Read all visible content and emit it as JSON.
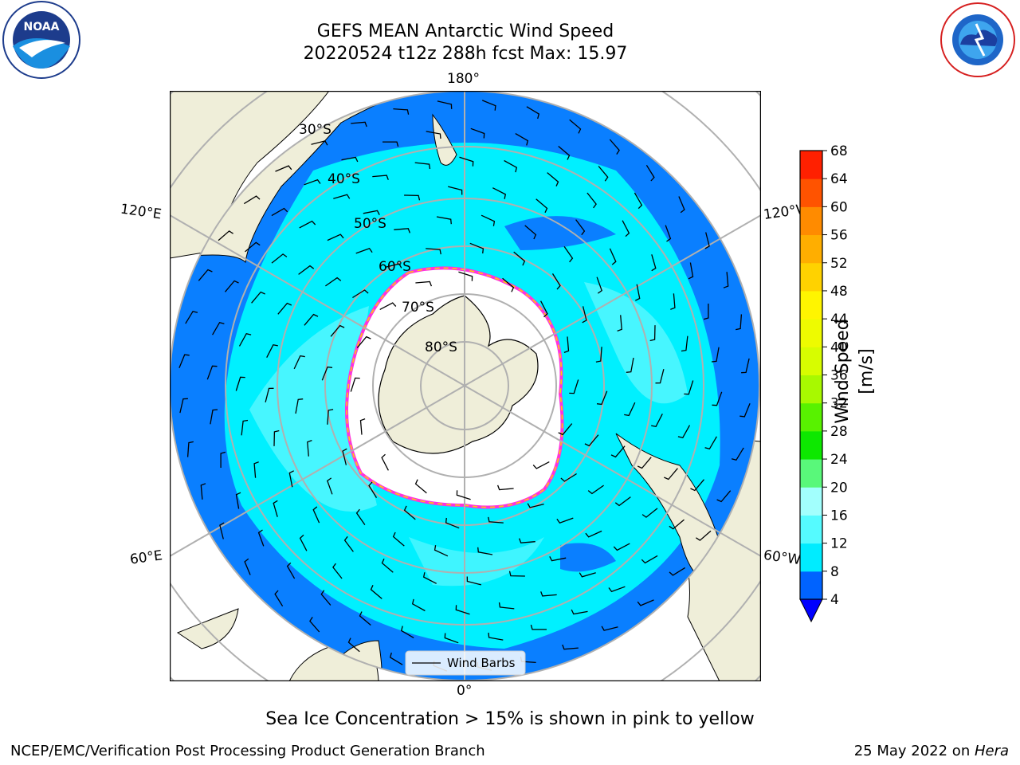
{
  "title": {
    "line1": "GEFS MEAN Antarctic Wind Speed",
    "line2": "20220524 t12z 288h fcst   Max: 15.97"
  },
  "map": {
    "lon_labels": {
      "top": "180°",
      "bottom": "0°",
      "left_upper": "120°E",
      "left_lower": "60°E",
      "right_upper": "120°W",
      "right_lower": "60°W"
    },
    "lat_labels": [
      "30°S",
      "40°S",
      "50°S",
      "60°S",
      "70°S",
      "80°S"
    ],
    "legend_label": "Wind Barbs",
    "colors": {
      "ocean_low": "#0a7fff",
      "ocean_mid": "#00f0ff",
      "ocean_high": "#4ff6ff",
      "land": "#efeed9",
      "ice": "#ffffff",
      "ice_edge": "#ff33dd"
    }
  },
  "colorbar": {
    "label": "Wind Speed [m/s]",
    "ticks": [
      "4",
      "8",
      "12",
      "16",
      "20",
      "24",
      "28",
      "32",
      "36",
      "40",
      "44",
      "48",
      "52",
      "56",
      "60",
      "64",
      "68"
    ],
    "colors": [
      "#0063ff",
      "#00ecff",
      "#55fbff",
      "#a2fffd",
      "#59f87a",
      "#0de800",
      "#58f200",
      "#a8f900",
      "#d7fd00",
      "#eefb00",
      "#fff500",
      "#ffd200",
      "#ffae00",
      "#ff8b00",
      "#ff5300",
      "#ff2000"
    ],
    "under_color": "#0000ff"
  },
  "caption": "Sea Ice Concentration > 15% is shown in pink to yellow",
  "footer": {
    "left": "NCEP/EMC/Verification Post Processing Product Generation Branch",
    "right_prefix": "25 May 2022 on ",
    "right_machine": "Hera"
  },
  "logos": {
    "left": "NOAA",
    "right": "NATIONAL WEATHER SERVICE"
  }
}
